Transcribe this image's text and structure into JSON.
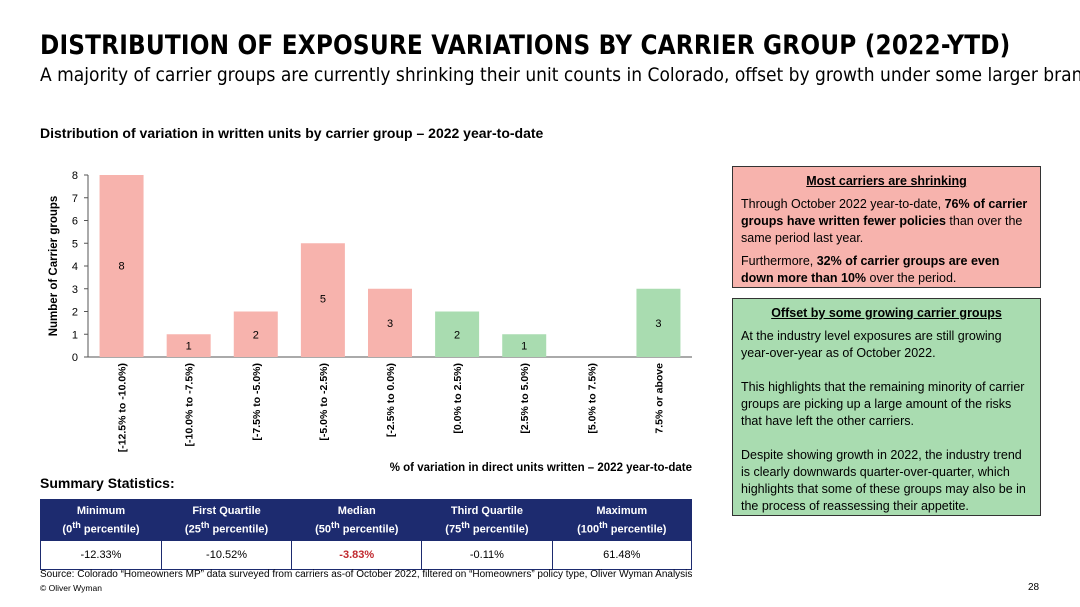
{
  "title": "DISTRIBUTION OF EXPOSURE VARIATIONS BY CARRIER GROUP (2022-YTD)",
  "subtitle": "A majority of carrier groups are currently shrinking their unit counts in Colorado, offset by growth under some larger brands.",
  "chart_data": {
    "type": "bar",
    "title": "Distribution of variation in written units by carrier group – 2022 year-to-date",
    "xlabel": "% of variation in direct units written – 2022 year-to-date",
    "ylabel": "Number of Carrier groups",
    "ylim": [
      0,
      8
    ],
    "yticks": [
      0,
      1,
      2,
      3,
      4,
      5,
      6,
      7,
      8
    ],
    "grid": false,
    "categories": [
      "[-12.5% to -10.0%)",
      "[-10.0% to -7.5%)",
      "[-7.5% to -5.0%)",
      "[-5.0% to -2.5%)",
      "[-2.5% to 0.0%)",
      "[0.0% to 2.5%)",
      "[2.5% to 5.0%)",
      "[5.0% to 7.5%)",
      "7.5% or above"
    ],
    "values": [
      8,
      1,
      2,
      5,
      3,
      2,
      1,
      0,
      3
    ],
    "data_labels": [
      "8",
      "1",
      "2",
      "5",
      "3",
      "2",
      "1",
      "",
      "3"
    ],
    "bar_colors": [
      "#f7b3ad",
      "#f7b3ad",
      "#f7b3ad",
      "#f7b3ad",
      "#f7b3ad",
      "#a9dcb0",
      "#a9dcb0",
      "#a9dcb0",
      "#a9dcb0"
    ]
  },
  "callouts": {
    "shrinking": {
      "heading": "Most carriers are shrinking",
      "p1_pre": "Through October 2022 year-to-date, ",
      "p1_bold": "76% of carrier groups have written fewer policies",
      "p1_post": " than over the same period last year.",
      "p2_pre": "Furthermore, ",
      "p2_bold": "32% of carrier groups are even down more than 10%",
      "p2_post": " over the period."
    },
    "growing": {
      "heading": "Offset by some growing carrier groups",
      "p1": "At the industry level exposures are still growing year-over-year as of October 2022.",
      "p2": "This highlights that the remaining minority of carrier groups are picking up a large amount of the risks that have left the other carriers.",
      "p3": "Despite showing growth in 2022, the industry trend is clearly downwards quarter-over-quarter, which highlights that some of these groups may also be in the process of reassessing their appetite."
    }
  },
  "summary": {
    "title": "Summary Statistics:",
    "columns": [
      {
        "name": "Minimum",
        "sub_pre": "(0",
        "sup": "th",
        "sub_post": " percentile)",
        "value": "-12.33%"
      },
      {
        "name": "First Quartile",
        "sub_pre": "(25",
        "sup": "th",
        "sub_post": " percentile)",
        "value": "-10.52%"
      },
      {
        "name": "Median",
        "sub_pre": "(50",
        "sup": "th",
        "sub_post": " percentile)",
        "value": "-3.83%"
      },
      {
        "name": "Third Quartile",
        "sub_pre": "(75",
        "sup": "th",
        "sub_post": " percentile)",
        "value": "-0.11%"
      },
      {
        "name": "Maximum",
        "sub_pre": "(100",
        "sup": "th",
        "sub_post": " percentile)",
        "value": "61.48%"
      }
    ]
  },
  "footer": {
    "source": "Source: Colorado “Homeowners MP” data surveyed from carriers as-of October 2022, filtered on “Homeowners” policy type, Oliver Wyman Analysis",
    "copyright": "© Oliver Wyman",
    "page_number": "28"
  }
}
